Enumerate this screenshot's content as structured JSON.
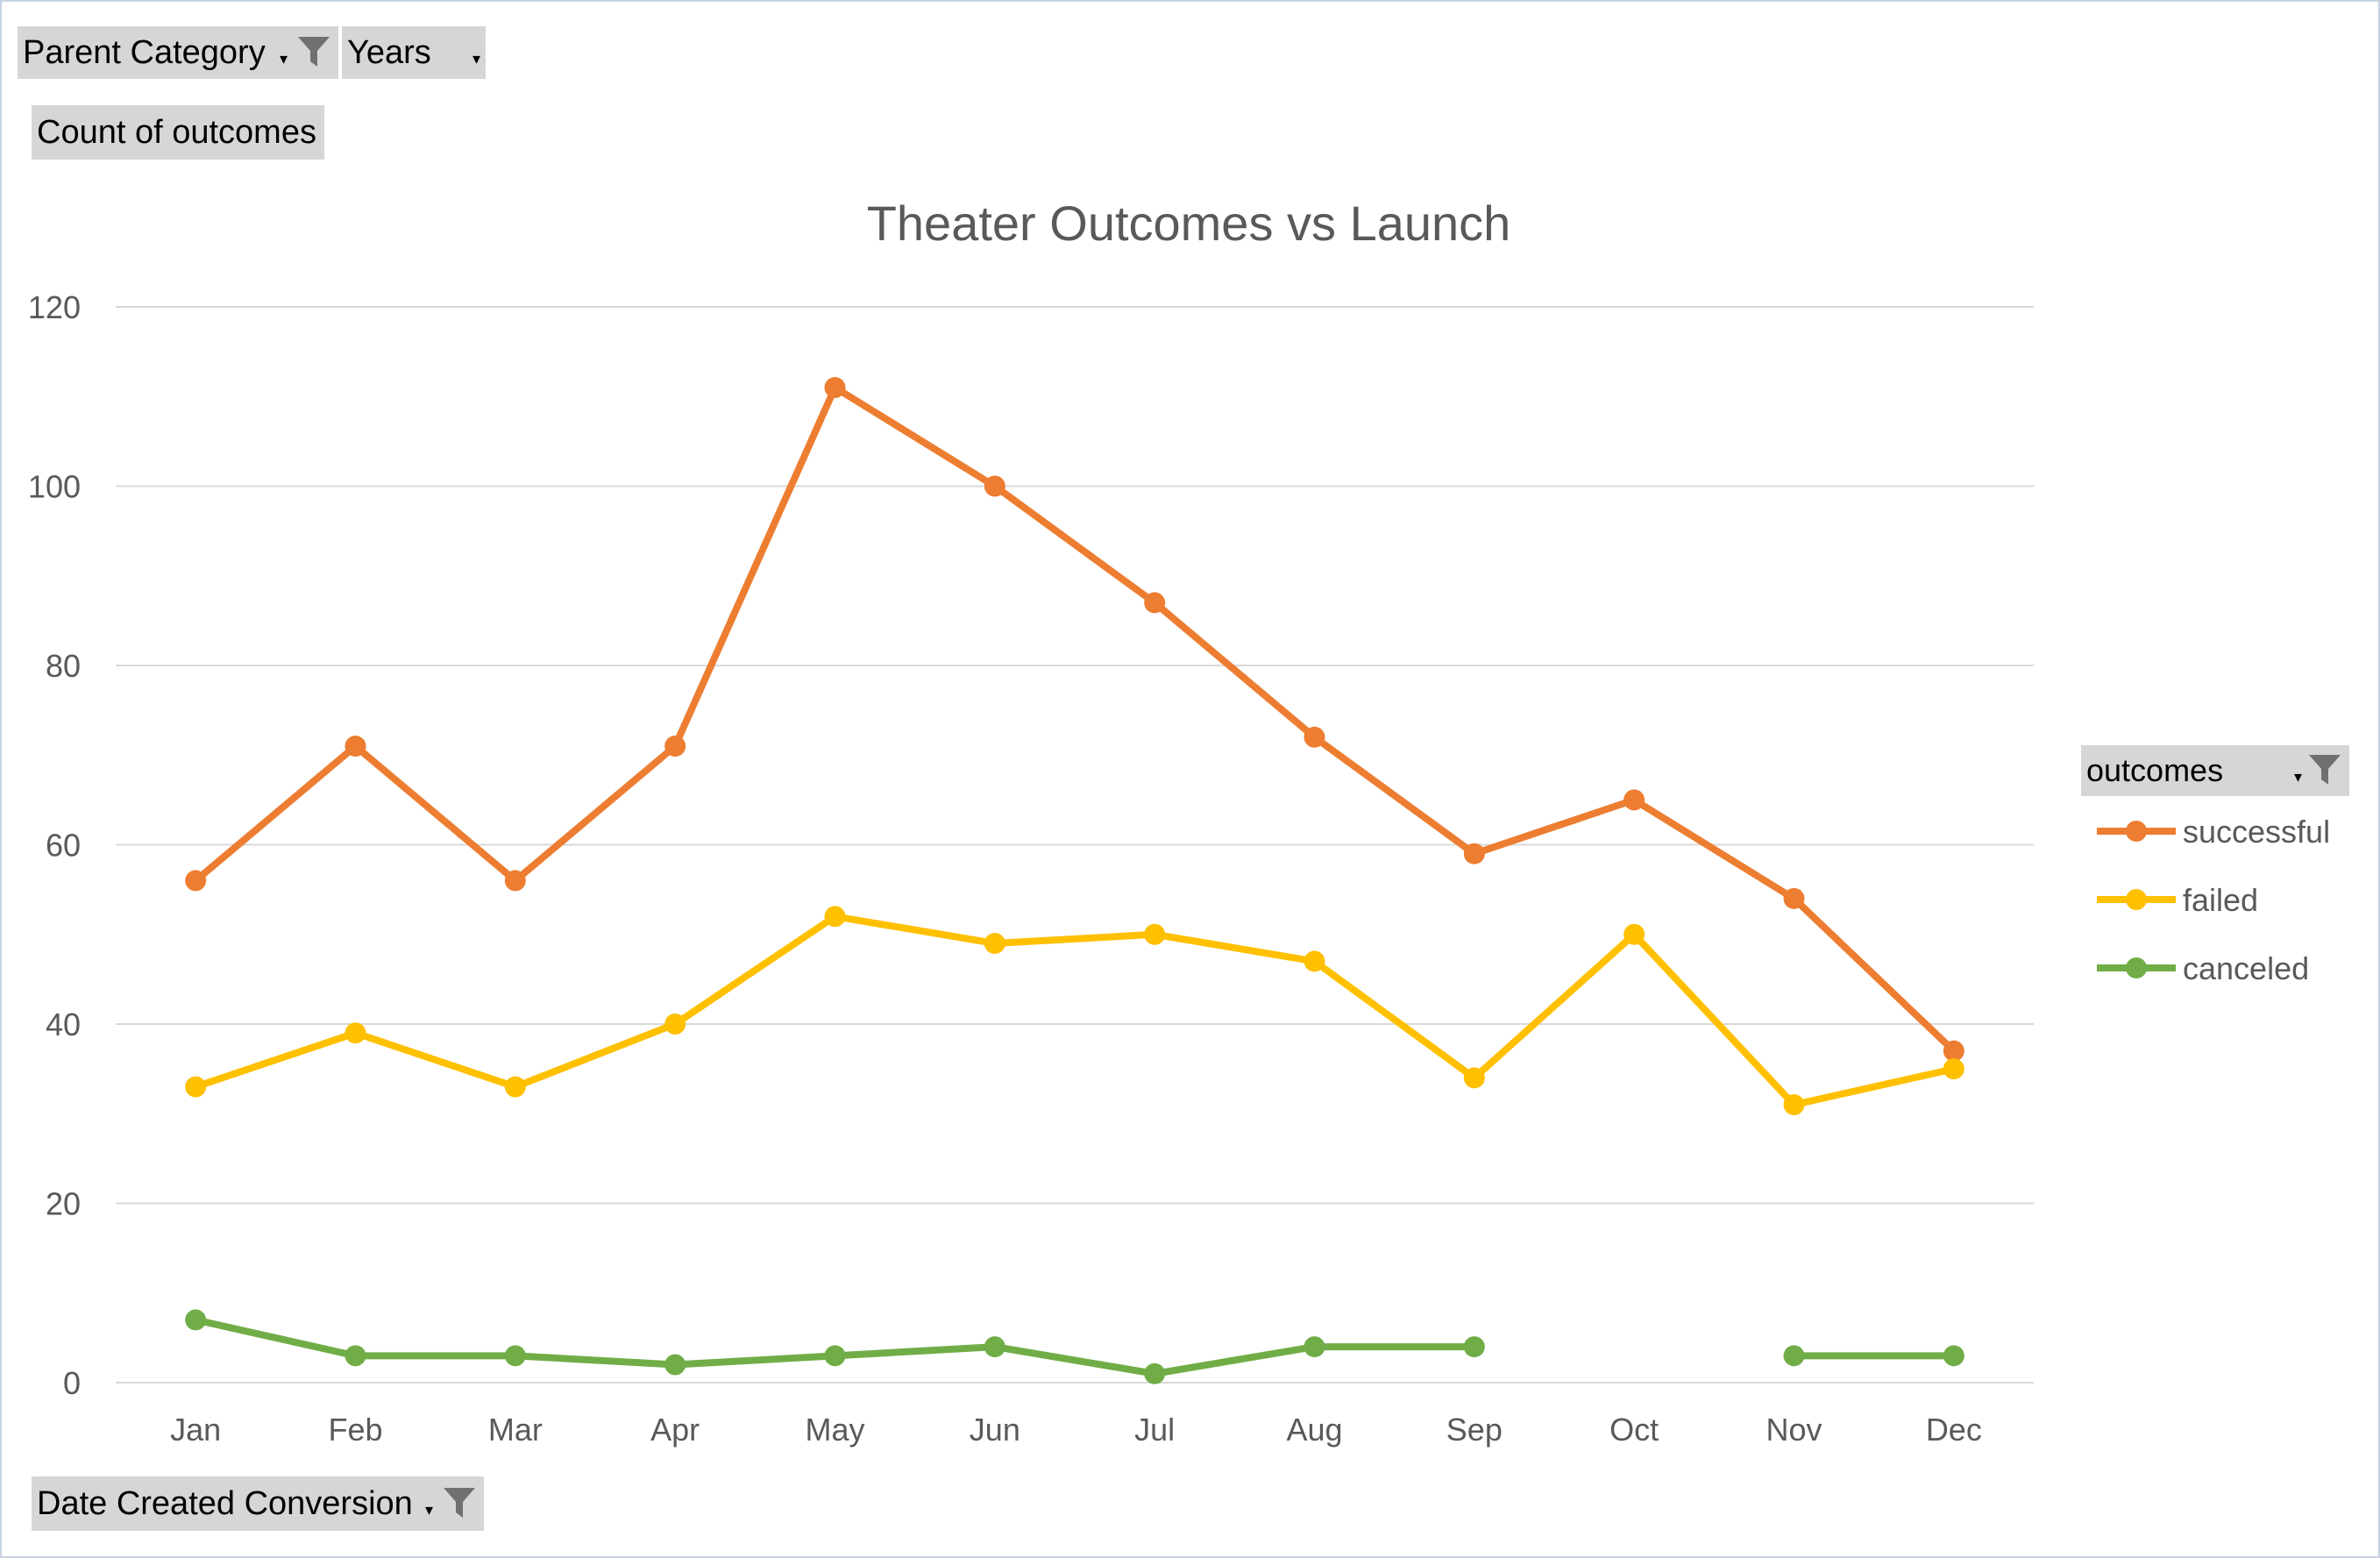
{
  "pivot_fields": {
    "parent_category": "Parent Category",
    "years": "Years",
    "value_field": "Count of outcomes",
    "axis_field": "Date Created Conversion",
    "legend_field": "outcomes"
  },
  "chart_data": {
    "type": "line",
    "title": "Theater Outcomes vs Launch",
    "xlabel": "",
    "ylabel": "",
    "categories": [
      "Jan",
      "Feb",
      "Mar",
      "Apr",
      "May",
      "Jun",
      "Jul",
      "Aug",
      "Sep",
      "Oct",
      "Nov",
      "Dec"
    ],
    "ylim": [
      0,
      120
    ],
    "yticks": [
      "0",
      "20",
      "40",
      "60",
      "80",
      "100",
      "120"
    ],
    "grid": true,
    "legend_position": "right",
    "series": [
      {
        "name": "successful",
        "color": "#ED7D31",
        "values": [
          56,
          71,
          56,
          71,
          111,
          100,
          87,
          72,
          59,
          65,
          54,
          37
        ]
      },
      {
        "name": "failed",
        "color": "#FFC000",
        "values": [
          33,
          39,
          33,
          40,
          52,
          49,
          50,
          47,
          34,
          50,
          31,
          35
        ]
      },
      {
        "name": "canceled",
        "color": "#70AD47",
        "values": [
          7,
          3,
          3,
          2,
          3,
          4,
          1,
          4,
          4,
          null,
          3,
          3
        ]
      }
    ]
  }
}
